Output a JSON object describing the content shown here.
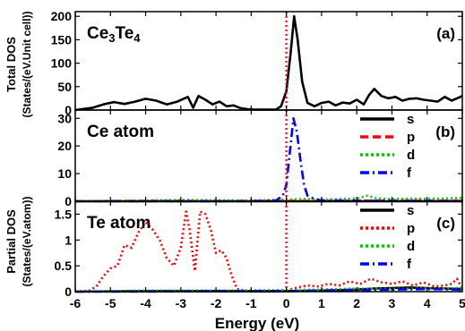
{
  "chart_data": [
    {
      "type": "line",
      "panel_id": "(a)",
      "title": "Ce3Te4",
      "xlim": [
        -6,
        5
      ],
      "ylim": [
        0,
        210
      ],
      "yticks": [
        0,
        50,
        100,
        150,
        200
      ],
      "grid": false,
      "series": [
        {
          "color": "#000000",
          "dash": "solid",
          "x": [
            -6.0,
            -5.5,
            -5.2,
            -4.9,
            -4.6,
            -4.3,
            -4.0,
            -3.7,
            -3.4,
            -3.1,
            -2.8,
            -2.65,
            -2.5,
            -2.3,
            -2.1,
            -1.9,
            -1.7,
            -1.5,
            -1.3,
            -1.1,
            -0.9,
            -0.7,
            -0.5,
            -0.3,
            -0.15,
            0.0,
            0.12,
            0.22,
            0.32,
            0.45,
            0.6,
            0.8,
            1.0,
            1.2,
            1.4,
            1.6,
            1.8,
            2.0,
            2.2,
            2.35,
            2.5,
            2.7,
            2.9,
            3.1,
            3.3,
            3.5,
            3.7,
            3.9,
            4.1,
            4.3,
            4.5,
            4.7,
            4.85,
            5.0
          ],
          "y": [
            0,
            5,
            12,
            17,
            13,
            18,
            24,
            20,
            12,
            18,
            28,
            5,
            30,
            22,
            12,
            18,
            8,
            10,
            4,
            2,
            1,
            1,
            1,
            1,
            8,
            40,
            120,
            200,
            150,
            60,
            15,
            8,
            15,
            18,
            10,
            16,
            14,
            22,
            12,
            32,
            45,
            30,
            25,
            28,
            20,
            24,
            25,
            22,
            20,
            18,
            28,
            20,
            25,
            30
          ]
        }
      ],
      "vline": {
        "x": 0,
        "color": "#ff0000",
        "dash": "dotted"
      }
    },
    {
      "type": "line",
      "panel_id": "(b)",
      "title": "Ce atom",
      "xlim": [
        -6,
        5
      ],
      "ylim": [
        0,
        33
      ],
      "yticks": [
        0,
        10,
        20,
        30
      ],
      "grid": false,
      "legend": [
        "s",
        "p",
        "d",
        "f"
      ],
      "legend_position": "right",
      "series": [
        {
          "name": "s",
          "color": "#000000",
          "dash": "solid",
          "x": [
            -6.0,
            -5.0,
            -4.0,
            -3.0,
            -2.0,
            -1.0,
            0.0,
            1.0,
            2.0,
            3.0,
            4.0,
            5.0
          ],
          "y": [
            0,
            0,
            0,
            0,
            0,
            0,
            0,
            0,
            0,
            0,
            0,
            0
          ]
        },
        {
          "name": "p",
          "color": "#ff0000",
          "dash": "dashed",
          "x": [
            -6.0,
            -4.0,
            -2.0,
            0.0,
            1.0,
            2.5,
            5.0
          ],
          "y": [
            0,
            0.2,
            0.1,
            0.2,
            0.1,
            0.3,
            0.2
          ]
        },
        {
          "name": "d",
          "color": "#00cc00",
          "dash": "dotted",
          "x": [
            -6.0,
            -4.0,
            -3.0,
            -2.0,
            -1.0,
            0.0,
            0.5,
            1.0,
            1.5,
            2.0,
            2.3,
            2.6,
            3.0,
            3.5,
            4.0,
            4.5,
            5.0
          ],
          "y": [
            0,
            0.3,
            0.5,
            0.4,
            0.3,
            0.6,
            0.8,
            0.6,
            0.8,
            1.0,
            2.0,
            1.0,
            0.8,
            1.0,
            0.9,
            1.0,
            1.2
          ]
        },
        {
          "name": "f",
          "color": "#0000ff",
          "dash": "dashdot",
          "x": [
            -6.0,
            -1.0,
            -0.3,
            -0.1,
            0.0,
            0.1,
            0.2,
            0.3,
            0.4,
            0.5,
            0.6,
            0.8,
            1.0,
            2.0,
            5.0
          ],
          "y": [
            0,
            0,
            0.3,
            2,
            6,
            18,
            30,
            25,
            15,
            6,
            2,
            0.8,
            0.3,
            0.2,
            0.1
          ]
        }
      ],
      "vline": {
        "x": 0,
        "color": "#ff0000",
        "dash": "dotted"
      }
    },
    {
      "type": "line",
      "panel_id": "(c)",
      "title": "Te atom",
      "xlim": [
        -6,
        5
      ],
      "ylim": [
        0,
        1.75
      ],
      "yticks": [
        0.0,
        0.5,
        1.0,
        1.5
      ],
      "grid": false,
      "legend": [
        "s",
        "p",
        "d",
        "f"
      ],
      "legend_position": "right",
      "series": [
        {
          "name": "s",
          "color": "#000000",
          "dash": "solid",
          "x": [
            -6.0,
            -4.0,
            -2.0,
            0.0,
            1.0,
            2.0,
            2.5,
            3.0,
            3.5,
            4.0,
            4.5,
            5.0
          ],
          "y": [
            0,
            0.01,
            0.01,
            0.01,
            0.02,
            0.04,
            0.06,
            0.07,
            0.08,
            0.07,
            0.06,
            0.05
          ]
        },
        {
          "name": "p",
          "color": "#ff0000",
          "dash": "dotted",
          "x": [
            -6.0,
            -5.6,
            -5.4,
            -5.2,
            -5.0,
            -4.8,
            -4.6,
            -4.4,
            -4.2,
            -4.0,
            -3.8,
            -3.6,
            -3.4,
            -3.2,
            -3.0,
            -2.85,
            -2.75,
            -2.6,
            -2.45,
            -2.3,
            -2.15,
            -2.0,
            -1.85,
            -1.7,
            -1.55,
            -1.4,
            -1.2,
            -1.0,
            -0.6,
            -0.3,
            0.0,
            0.3,
            0.6,
            0.9,
            1.2,
            1.5,
            1.8,
            2.1,
            2.4,
            2.7,
            3.0,
            3.3,
            3.6,
            3.9,
            4.2,
            4.5,
            4.7,
            4.85,
            5.0
          ],
          "y": [
            0.0,
            0.02,
            0.1,
            0.3,
            0.45,
            0.5,
            0.9,
            0.85,
            1.15,
            1.35,
            1.2,
            1.0,
            0.65,
            0.5,
            0.85,
            1.55,
            1.2,
            0.4,
            1.55,
            1.5,
            1.2,
            0.75,
            0.8,
            0.65,
            0.3,
            0.05,
            0.02,
            0.0,
            0.0,
            0.0,
            0.02,
            0.08,
            0.12,
            0.1,
            0.15,
            0.12,
            0.2,
            0.15,
            0.25,
            0.18,
            0.15,
            0.2,
            0.12,
            0.18,
            0.1,
            0.12,
            0.15,
            0.25,
            0.05
          ]
        },
        {
          "name": "d",
          "color": "#00cc00",
          "dash": "dotted",
          "x": [
            -6.0,
            -4.0,
            -2.0,
            0.0,
            1.0,
            2.0,
            3.0,
            4.0,
            5.0
          ],
          "y": [
            0,
            0.02,
            0.02,
            0.03,
            0.04,
            0.06,
            0.05,
            0.06,
            0.07
          ]
        },
        {
          "name": "f",
          "color": "#0000ff",
          "dash": "dashdot",
          "x": [
            -6.0,
            -4.0,
            -2.0,
            0.0,
            1.0,
            2.0,
            3.0,
            4.0,
            5.0
          ],
          "y": [
            0,
            0.0,
            0.01,
            0.01,
            0.02,
            0.03,
            0.04,
            0.05,
            0.04
          ]
        }
      ],
      "vline": {
        "x": 0,
        "color": "#ff0000",
        "dash": "dotted"
      }
    }
  ],
  "axes": {
    "xlabel": "Energy (eV)",
    "xticks": [
      -6,
      -5,
      -4,
      -3,
      -2,
      -1,
      0,
      1,
      2,
      3,
      4,
      5
    ],
    "total_ylabel_line1": "Total DOS",
    "total_ylabel_line2": "(States/(eV.Unit cell))",
    "partial_ylabel_line1": "Partial DOS",
    "partial_ylabel_line2": "(States/(eV.atom))"
  },
  "colors": {
    "s": "#000000",
    "p": "#ff0000",
    "d": "#00cc00",
    "f": "#0000ff",
    "fermi": "#ff0000"
  }
}
